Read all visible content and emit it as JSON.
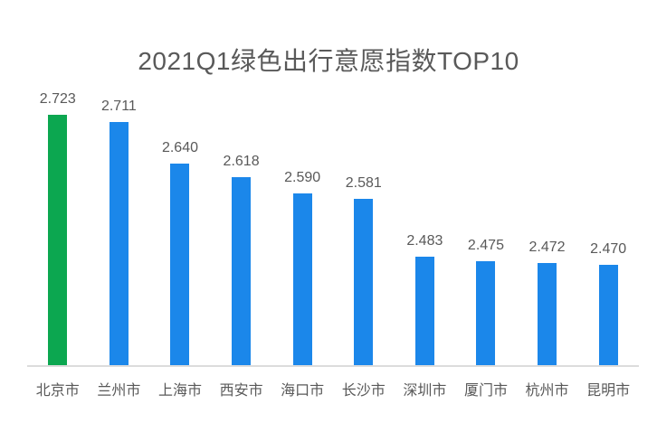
{
  "page": {
    "background_color": "#ffffff"
  },
  "chart_data": {
    "type": "bar",
    "title": "2021Q1绿色出行意愿指数TOP10",
    "categories": [
      "北京市",
      "兰州市",
      "上海市",
      "西安市",
      "海口市",
      "长沙市",
      "深圳市",
      "厦门市",
      "杭州市",
      "昆明市"
    ],
    "values": [
      2.723,
      2.711,
      2.64,
      2.618,
      2.59,
      2.581,
      2.483,
      2.475,
      2.472,
      2.47
    ],
    "value_labels": [
      "2.723",
      "2.711",
      "2.640",
      "2.618",
      "2.590",
      "2.581",
      "2.483",
      "2.475",
      "2.472",
      "2.470"
    ],
    "xlabel": "",
    "ylabel": "",
    "ylim": [
      2.3,
      2.75
    ],
    "grid": false,
    "legend": false,
    "data_labels_visible": true,
    "highlight_index": 0,
    "colors": {
      "highlight_bar": "#0CA750",
      "default_bar": "#1B87EA",
      "title_text": "#595959",
      "label_text": "#595959",
      "axis_line": "#dcdcdc"
    }
  }
}
